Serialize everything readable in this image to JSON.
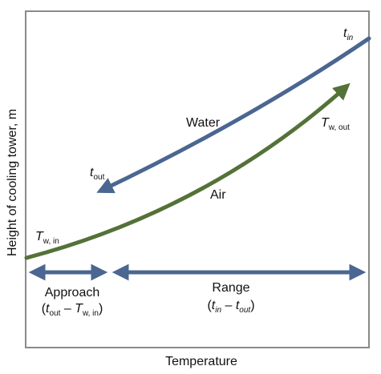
{
  "axes": {
    "y_label": "Height of cooling tower, m",
    "x_label": "Temperature"
  },
  "curves": {
    "water": {
      "name": "Water",
      "color": "#4a6691"
    },
    "air": {
      "name": "Air",
      "color": "#547238"
    }
  },
  "points": {
    "t_in": {
      "symbol": "t",
      "subscript": "in"
    },
    "t_out": {
      "symbol": "t",
      "subscript": "out"
    },
    "tw_in": {
      "symbol": "T",
      "subscript": "w, in"
    },
    "tw_out": {
      "symbol": "T",
      "subscript": "w, out"
    }
  },
  "spans": {
    "approach": {
      "label": "Approach",
      "expr": {
        "open": "(",
        "a": "t",
        "a_sub": "out",
        "minus": " – ",
        "b": "T",
        "b_sub": "w, in",
        "close": ")"
      }
    },
    "range": {
      "label": "Range",
      "expr": {
        "open": "(",
        "a": "t",
        "a_sub": "in",
        "minus": " – ",
        "b": "t",
        "b_sub": "out",
        "close": ")"
      }
    }
  },
  "colors": {
    "frame": "#8a8a8a",
    "span_arrow": "#4a6691"
  }
}
